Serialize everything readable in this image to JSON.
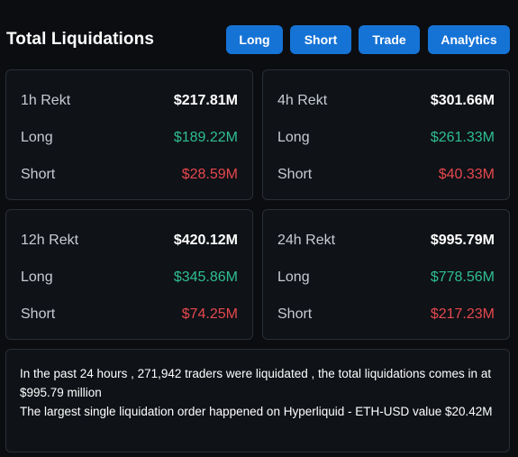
{
  "header": {
    "title": "Total Liquidations",
    "buttons": {
      "long": "Long",
      "short": "Short",
      "trade": "Trade",
      "analytics": "Analytics"
    }
  },
  "cards": {
    "h1": {
      "title": "1h Rekt",
      "total": "$217.81M",
      "long_label": "Long",
      "long": "$189.22M",
      "short_label": "Short",
      "short": "$28.59M"
    },
    "h4": {
      "title": "4h Rekt",
      "total": "$301.66M",
      "long_label": "Long",
      "long": "$261.33M",
      "short_label": "Short",
      "short": "$40.33M"
    },
    "h12": {
      "title": "12h Rekt",
      "total": "$420.12M",
      "long_label": "Long",
      "long": "$345.86M",
      "short_label": "Short",
      "short": "$74.25M"
    },
    "h24": {
      "title": "24h Rekt",
      "total": "$995.79M",
      "long_label": "Long",
      "long": "$778.56M",
      "short_label": "Short",
      "short": "$217.23M"
    }
  },
  "summary": {
    "line1": "In the past 24 hours , 271,942 traders were liquidated , the total liquidations comes in at $995.79 million",
    "line2": "The largest single liquidation order happened on Hyperliquid - ETH-USD value $20.42M"
  },
  "colors": {
    "background": "#0b0d11",
    "button": "#1673d6",
    "long": "#2fbf8f",
    "short": "#e5484d"
  }
}
